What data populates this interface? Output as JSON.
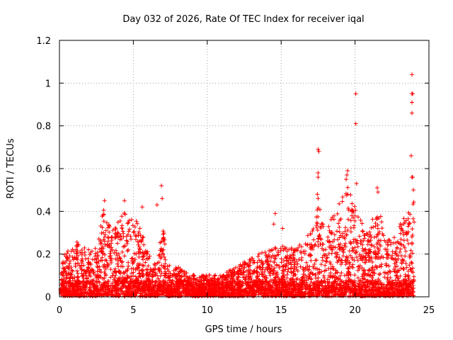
{
  "chart_data": {
    "type": "scatter",
    "title": "Day 032 of 2026, Rate Of TEC Index for receiver iqal",
    "xlabel": "GPS time / hours",
    "ylabel": "ROTI / TECUs",
    "xlim": [
      0,
      25
    ],
    "ylim": [
      0,
      1.2
    ],
    "x_ticks": [
      0,
      5,
      10,
      15,
      20,
      25
    ],
    "x_tick_labels": [
      "0",
      "5",
      "10",
      "15",
      "20",
      "25"
    ],
    "y_ticks": [
      0,
      0.2,
      0.4,
      0.6,
      0.8,
      1.0,
      1.2
    ],
    "y_tick_labels": [
      "0",
      "0.2",
      "0.4",
      "0.6",
      "0.8",
      "1",
      "1.2"
    ],
    "grid": true,
    "marker": "+",
    "marker_color": "#ff0000",
    "series": [
      {
        "name": "ROTI",
        "envelope": [
          {
            "x": 0.0,
            "y": 0.14
          },
          {
            "x": 0.5,
            "y": 0.22
          },
          {
            "x": 1.0,
            "y": 0.26
          },
          {
            "x": 1.5,
            "y": 0.25
          },
          {
            "x": 2.0,
            "y": 0.22
          },
          {
            "x": 2.5,
            "y": 0.24
          },
          {
            "x": 3.0,
            "y": 0.42
          },
          {
            "x": 3.5,
            "y": 0.3
          },
          {
            "x": 4.0,
            "y": 0.36
          },
          {
            "x": 4.5,
            "y": 0.4
          },
          {
            "x": 5.0,
            "y": 0.36
          },
          {
            "x": 5.5,
            "y": 0.34
          },
          {
            "x": 6.0,
            "y": 0.2
          },
          {
            "x": 6.5,
            "y": 0.15
          },
          {
            "x": 7.0,
            "y": 0.33
          },
          {
            "x": 7.5,
            "y": 0.12
          },
          {
            "x": 8.0,
            "y": 0.14
          },
          {
            "x": 9.0,
            "y": 0.1
          },
          {
            "x": 10.0,
            "y": 0.1
          },
          {
            "x": 11.0,
            "y": 0.1
          },
          {
            "x": 12.0,
            "y": 0.14
          },
          {
            "x": 13.0,
            "y": 0.18
          },
          {
            "x": 14.0,
            "y": 0.22
          },
          {
            "x": 15.0,
            "y": 0.24
          },
          {
            "x": 16.0,
            "y": 0.22
          },
          {
            "x": 17.0,
            "y": 0.3
          },
          {
            "x": 17.5,
            "y": 0.48
          },
          {
            "x": 18.0,
            "y": 0.3
          },
          {
            "x": 18.5,
            "y": 0.4
          },
          {
            "x": 19.0,
            "y": 0.46
          },
          {
            "x": 19.5,
            "y": 0.52
          },
          {
            "x": 20.0,
            "y": 0.42
          },
          {
            "x": 20.5,
            "y": 0.34
          },
          {
            "x": 21.0,
            "y": 0.3
          },
          {
            "x": 21.5,
            "y": 0.46
          },
          {
            "x": 22.0,
            "y": 0.28
          },
          {
            "x": 22.5,
            "y": 0.26
          },
          {
            "x": 23.0,
            "y": 0.34
          },
          {
            "x": 23.5,
            "y": 0.38
          },
          {
            "x": 24.0,
            "y": 0.46
          }
        ],
        "outliers": [
          {
            "x": 3.05,
            "y": 0.45
          },
          {
            "x": 4.4,
            "y": 0.45
          },
          {
            "x": 5.6,
            "y": 0.42
          },
          {
            "x": 6.9,
            "y": 0.52
          },
          {
            "x": 6.95,
            "y": 0.46
          },
          {
            "x": 6.6,
            "y": 0.43
          },
          {
            "x": 14.6,
            "y": 0.39
          },
          {
            "x": 14.5,
            "y": 0.34
          },
          {
            "x": 15.1,
            "y": 0.32
          },
          {
            "x": 17.5,
            "y": 0.69
          },
          {
            "x": 17.55,
            "y": 0.68
          },
          {
            "x": 17.5,
            "y": 0.58
          },
          {
            "x": 17.5,
            "y": 0.56
          },
          {
            "x": 17.45,
            "y": 0.48
          },
          {
            "x": 17.5,
            "y": 0.46
          },
          {
            "x": 19.5,
            "y": 0.59
          },
          {
            "x": 19.45,
            "y": 0.57
          },
          {
            "x": 19.4,
            "y": 0.55
          },
          {
            "x": 20.05,
            "y": 0.95
          },
          {
            "x": 20.05,
            "y": 0.81
          },
          {
            "x": 20.1,
            "y": 0.53
          },
          {
            "x": 21.5,
            "y": 0.51
          },
          {
            "x": 21.55,
            "y": 0.49
          },
          {
            "x": 23.85,
            "y": 1.04
          },
          {
            "x": 23.85,
            "y": 0.95
          },
          {
            "x": 23.9,
            "y": 0.95
          },
          {
            "x": 23.85,
            "y": 0.91
          },
          {
            "x": 23.85,
            "y": 0.86
          },
          {
            "x": 23.8,
            "y": 0.66
          },
          {
            "x": 23.85,
            "y": 0.56
          },
          {
            "x": 23.9,
            "y": 0.56
          },
          {
            "x": 23.95,
            "y": 0.5
          }
        ]
      }
    ]
  }
}
